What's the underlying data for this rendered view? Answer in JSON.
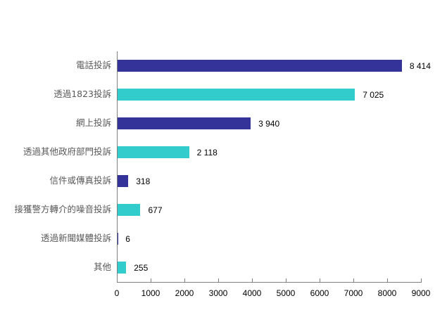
{
  "chart_data": {
    "type": "bar",
    "orientation": "horizontal",
    "title": "",
    "xlabel": "",
    "ylabel": "",
    "xlim": [
      0,
      9000
    ],
    "x_ticks": [
      "0",
      "1000",
      "2000",
      "3000",
      "4000",
      "5000",
      "6000",
      "7000",
      "8000",
      "9000"
    ],
    "grid": false,
    "legend": null,
    "categories": [
      "電話投訴",
      "透過1823投訴",
      "網上投訴",
      "透過其他政府部門投訴",
      "信件或傳真投訴",
      "接獲警方轉介的噪音投訴",
      "透過新聞媒體投訴",
      "其他"
    ],
    "values": [
      8414,
      7025,
      3940,
      2118,
      318,
      677,
      6,
      255
    ],
    "value_labels": [
      "8 414",
      "7 025",
      "3 940",
      "2 118",
      "318",
      "677",
      "6",
      "255"
    ],
    "bar_colors": [
      "#333399",
      "#33CCCC",
      "#333399",
      "#33CCCC",
      "#333399",
      "#33CCCC",
      "#333399",
      "#33CCCC"
    ]
  }
}
